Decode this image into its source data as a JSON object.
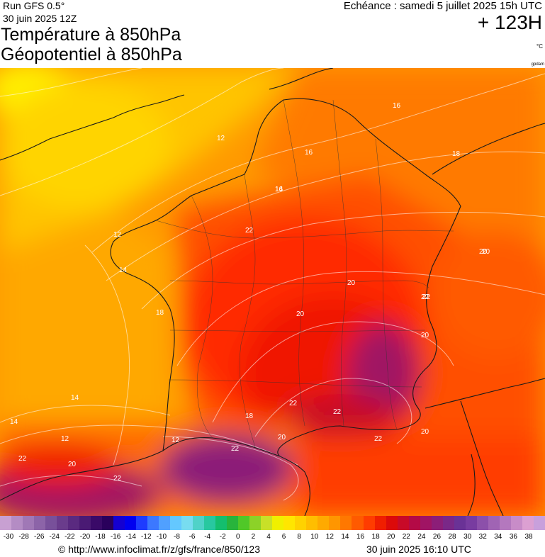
{
  "header": {
    "run": "Run GFS 0.5°",
    "run_date": "30 juin 2025 12Z",
    "title_line1": "Température à 850hPa",
    "title_line2": "Géopotentiel à 850hPa",
    "valid_time": "Echéance : samedi 5 juillet 2025 15h UTC",
    "lead_time": "+ 123H",
    "unit": "°C",
    "brand": "gpdam"
  },
  "map": {
    "isotherm_labels": [
      "12",
      "14",
      "16",
      "18",
      "20",
      "22",
      "12",
      "14",
      "16",
      "18",
      "20",
      "22",
      "12",
      "14",
      "16",
      "18",
      "20",
      "20",
      "20",
      "20",
      "22",
      "22",
      "22",
      "22",
      "14",
      "12",
      "20",
      "22",
      "22",
      "22",
      "20"
    ]
  },
  "legend": {
    "colors": [
      "#c8a0d2",
      "#b48cc4",
      "#a078b6",
      "#8c64a8",
      "#78509a",
      "#6a3c8c",
      "#5a2a80",
      "#4a1a74",
      "#3a0a68",
      "#2a005c",
      "#1400d2",
      "#0000f0",
      "#1e3cff",
      "#3c78ff",
      "#50a0ff",
      "#64c8ff",
      "#78dcf0",
      "#50d2c8",
      "#28c8a0",
      "#14be6e",
      "#28b43c",
      "#50c828",
      "#8cd228",
      "#c8e028",
      "#f0f000",
      "#ffe600",
      "#ffd200",
      "#ffbe00",
      "#ffaa00",
      "#ff9600",
      "#ff7800",
      "#ff5a00",
      "#ff3c00",
      "#f01e00",
      "#dc0a0a",
      "#c80a28",
      "#b40a46",
      "#a01464",
      "#8c1e78",
      "#7a2888",
      "#6a3296",
      "#783ca0",
      "#8c50aa",
      "#a064b4",
      "#b478be",
      "#c88cc8",
      "#dca0d2",
      "#c8a0dc"
    ],
    "ticks": [
      "-30",
      "-28",
      "-26",
      "-24",
      "-22",
      "-20",
      "-18",
      "-16",
      "-14",
      "-12",
      "-10",
      "-8",
      "-6",
      "-4",
      "-2",
      "0",
      "2",
      "4",
      "6",
      "8",
      "10",
      "12",
      "14",
      "16",
      "18",
      "20",
      "22",
      "24",
      "26",
      "28",
      "30",
      "32",
      "34",
      "36",
      "38"
    ]
  },
  "footer": {
    "credit": "© http://www.infoclimat.fr/z/gfs/france/850/123",
    "generated": "30 juin 2025 16:10 UTC"
  }
}
